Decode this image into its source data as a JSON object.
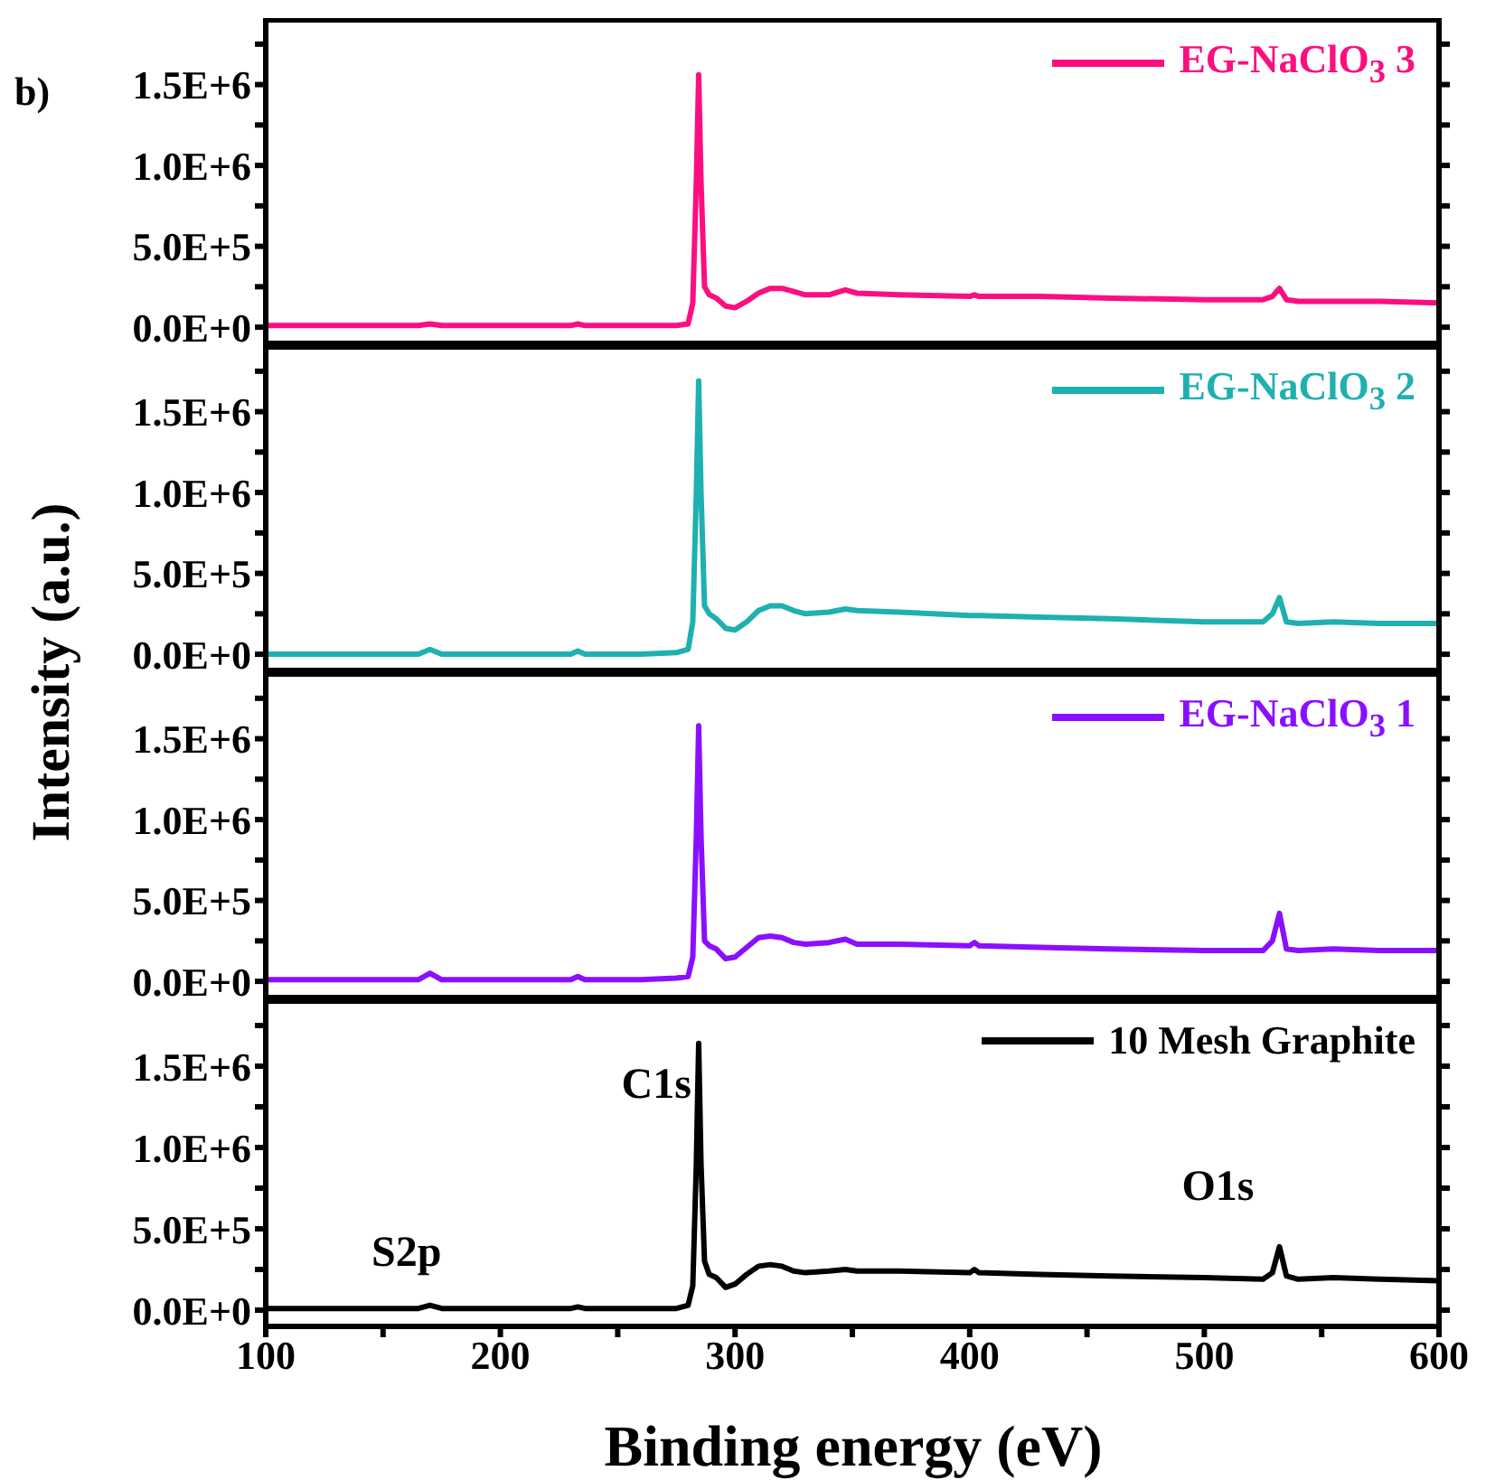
{
  "chart_data": [
    {
      "type": "line",
      "annotations": [
        "b)"
      ],
      "x": [
        100,
        140,
        165,
        170,
        175,
        200,
        230,
        233,
        236,
        260,
        275,
        280,
        282,
        283.5,
        284.5,
        285.5,
        287,
        289,
        292,
        296,
        300,
        305,
        310,
        315,
        320,
        325,
        330,
        340,
        347,
        352,
        370,
        400,
        402,
        404,
        430,
        460,
        500,
        525,
        529,
        532,
        535,
        540,
        555,
        575,
        600
      ],
      "series": [
        {
          "name": "EG-NaClO$_{3}$ 3",
          "color": "#fb0f80",
          "values": [
            10000,
            10000,
            10000,
            20000,
            10000,
            10000,
            10000,
            20000,
            10000,
            10000,
            10000,
            20000,
            150000,
            900000,
            1560000,
            900000,
            250000,
            200000,
            180000,
            130000,
            120000,
            160000,
            210000,
            240000,
            240000,
            220000,
            200000,
            200000,
            230000,
            210000,
            200000,
            190000,
            200000,
            190000,
            190000,
            180000,
            170000,
            170000,
            190000,
            240000,
            170000,
            160000,
            160000,
            160000,
            150000
          ]
        }
      ],
      "xlim": [
        100,
        600
      ],
      "xticks": [
        100,
        {
          "value": 150,
          "label": null
        },
        200,
        {
          "value": 250,
          "label": null
        },
        300,
        {
          "value": 350,
          "label": null
        },
        400,
        {
          "value": 450,
          "label": null
        },
        500,
        {
          "value": 550,
          "label": null
        },
        600
      ],
      "ylim": [
        -100000,
        1900000
      ],
      "yticks": [
        {
          "value": 0,
          "label": "0.0E+0"
        },
        {
          "value": 250000,
          "label": null
        },
        {
          "value": 500000,
          "label": "5.0E+5"
        },
        {
          "value": 750000,
          "label": null
        },
        {
          "value": 1000000,
          "label": "1.0E+6"
        },
        {
          "value": 1250000,
          "label": null
        },
        {
          "value": 1500000,
          "label": "1.5E+6"
        },
        {
          "value": 1750000,
          "label": null
        }
      ],
      "tick_labels": "y",
      "legend": "top right"
    },
    {
      "type": "line",
      "ylabel": "Intensity (a.u.)",
      "x": [
        100,
        140,
        165,
        170,
        175,
        200,
        230,
        233,
        236,
        260,
        275,
        280,
        282,
        283.5,
        284.5,
        285.5,
        287,
        289,
        292,
        296,
        300,
        305,
        310,
        315,
        320,
        325,
        330,
        340,
        347,
        352,
        370,
        400,
        402,
        404,
        430,
        460,
        500,
        525,
        529,
        532,
        535,
        540,
        555,
        575,
        600
      ],
      "series": [
        {
          "name": "EG-NaClO$_{3}$ 2",
          "color": "#1fb0b0",
          "values": [
            0,
            0,
            0,
            30000,
            0,
            0,
            0,
            20000,
            0,
            0,
            10000,
            30000,
            200000,
            1000000,
            1690000,
            1000000,
            300000,
            250000,
            220000,
            160000,
            150000,
            200000,
            270000,
            300000,
            300000,
            270000,
            250000,
            260000,
            280000,
            270000,
            260000,
            240000,
            240000,
            240000,
            230000,
            220000,
            200000,
            200000,
            250000,
            350000,
            200000,
            190000,
            200000,
            190000,
            190000
          ]
        }
      ],
      "xlim": [
        100,
        600
      ],
      "xticks": [
        100,
        {
          "value": 150,
          "label": null
        },
        200,
        {
          "value": 250,
          "label": null
        },
        300,
        {
          "value": 350,
          "label": null
        },
        400,
        {
          "value": 450,
          "label": null
        },
        500,
        {
          "value": 550,
          "label": null
        },
        600
      ],
      "ylim": [
        -100000,
        1900000
      ],
      "yticks": [
        {
          "value": 0,
          "label": "0.0E+0"
        },
        {
          "value": 250000,
          "label": null
        },
        {
          "value": 500000,
          "label": "5.0E+5"
        },
        {
          "value": 750000,
          "label": null
        },
        {
          "value": 1000000,
          "label": "1.0E+6"
        },
        {
          "value": 1250000,
          "label": null
        },
        {
          "value": 1500000,
          "label": "1.5E+6"
        },
        {
          "value": 1750000,
          "label": null
        }
      ],
      "tick_labels": "y",
      "legend": "top right"
    },
    {
      "type": "line",
      "x": [
        100,
        140,
        165,
        170,
        175,
        200,
        230,
        233,
        236,
        260,
        275,
        280,
        282,
        283.5,
        284.5,
        285.5,
        287,
        289,
        292,
        296,
        300,
        305,
        310,
        315,
        320,
        325,
        330,
        340,
        347,
        352,
        370,
        400,
        402,
        404,
        430,
        460,
        500,
        525,
        529,
        532,
        535,
        540,
        555,
        575,
        600
      ],
      "series": [
        {
          "name": "EG-NaClO$_{3}$ 1",
          "color": "#8a0fff",
          "values": [
            10000,
            10000,
            10000,
            50000,
            10000,
            10000,
            10000,
            30000,
            10000,
            10000,
            20000,
            30000,
            150000,
            900000,
            1580000,
            900000,
            250000,
            220000,
            200000,
            140000,
            150000,
            210000,
            270000,
            280000,
            270000,
            240000,
            230000,
            240000,
            260000,
            230000,
            230000,
            220000,
            240000,
            220000,
            210000,
            200000,
            190000,
            190000,
            250000,
            420000,
            200000,
            190000,
            200000,
            190000,
            190000
          ]
        }
      ],
      "xlim": [
        100,
        600
      ],
      "xticks": [
        100,
        {
          "value": 150,
          "label": null
        },
        200,
        {
          "value": 250,
          "label": null
        },
        300,
        {
          "value": 350,
          "label": null
        },
        400,
        {
          "value": 450,
          "label": null
        },
        500,
        {
          "value": 550,
          "label": null
        },
        600
      ],
      "ylim": [
        -100000,
        1900000
      ],
      "yticks": [
        {
          "value": 0,
          "label": "0.0E+0"
        },
        {
          "value": 250000,
          "label": null
        },
        {
          "value": 500000,
          "label": "5.0E+5"
        },
        {
          "value": 750000,
          "label": null
        },
        {
          "value": 1000000,
          "label": "1.0E+6"
        },
        {
          "value": 1250000,
          "label": null
        },
        {
          "value": 1500000,
          "label": "1.5E+6"
        },
        {
          "value": 1750000,
          "label": null
        }
      ],
      "tick_labels": "y",
      "legend": "top right"
    },
    {
      "type": "line",
      "xlabel": "Binding energy (eV)",
      "annotations": [
        {
          "text": "C1s",
          "x": 284.5,
          "y": 1640000
        },
        {
          "text": "S2p",
          "x": 170,
          "y": 30000
        },
        {
          "text": "O1s",
          "x": 532,
          "y": 390000
        }
      ],
      "x": [
        100,
        140,
        165,
        170,
        175,
        200,
        230,
        233,
        236,
        260,
        275,
        280,
        282,
        283.5,
        284.5,
        285.5,
        287,
        289,
        292,
        296,
        300,
        305,
        310,
        315,
        320,
        325,
        330,
        340,
        347,
        352,
        370,
        400,
        402,
        404,
        430,
        460,
        500,
        525,
        529,
        532,
        535,
        540,
        555,
        575,
        600
      ],
      "series": [
        {
          "name": "10 Mesh Graphite",
          "color": "#000000",
          "values": [
            10000,
            10000,
            10000,
            30000,
            10000,
            10000,
            10000,
            20000,
            10000,
            10000,
            10000,
            30000,
            150000,
            900000,
            1640000,
            900000,
            300000,
            220000,
            200000,
            140000,
            160000,
            220000,
            270000,
            280000,
            270000,
            240000,
            230000,
            240000,
            250000,
            240000,
            240000,
            230000,
            250000,
            230000,
            220000,
            210000,
            200000,
            190000,
            230000,
            390000,
            210000,
            190000,
            200000,
            190000,
            180000
          ]
        }
      ],
      "xlim": [
        100,
        600
      ],
      "xticks": [
        100,
        {
          "value": 150,
          "label": null
        },
        200,
        {
          "value": 250,
          "label": null
        },
        300,
        {
          "value": 350,
          "label": null
        },
        400,
        {
          "value": 450,
          "label": null
        },
        500,
        {
          "value": 550,
          "label": null
        },
        600
      ],
      "ylim": [
        -100000,
        1900000
      ],
      "yticks": [
        {
          "value": 0,
          "label": "0.0E+0"
        },
        {
          "value": 250000,
          "label": null
        },
        {
          "value": 500000,
          "label": "5.0E+5"
        },
        {
          "value": 750000,
          "label": null
        },
        {
          "value": 1000000,
          "label": "1.0E+6"
        },
        {
          "value": 1250000,
          "label": null
        },
        {
          "value": 1500000,
          "label": "1.5E+6"
        },
        {
          "value": 1750000,
          "label": null
        }
      ],
      "legend": "top right"
    }
  ]
}
